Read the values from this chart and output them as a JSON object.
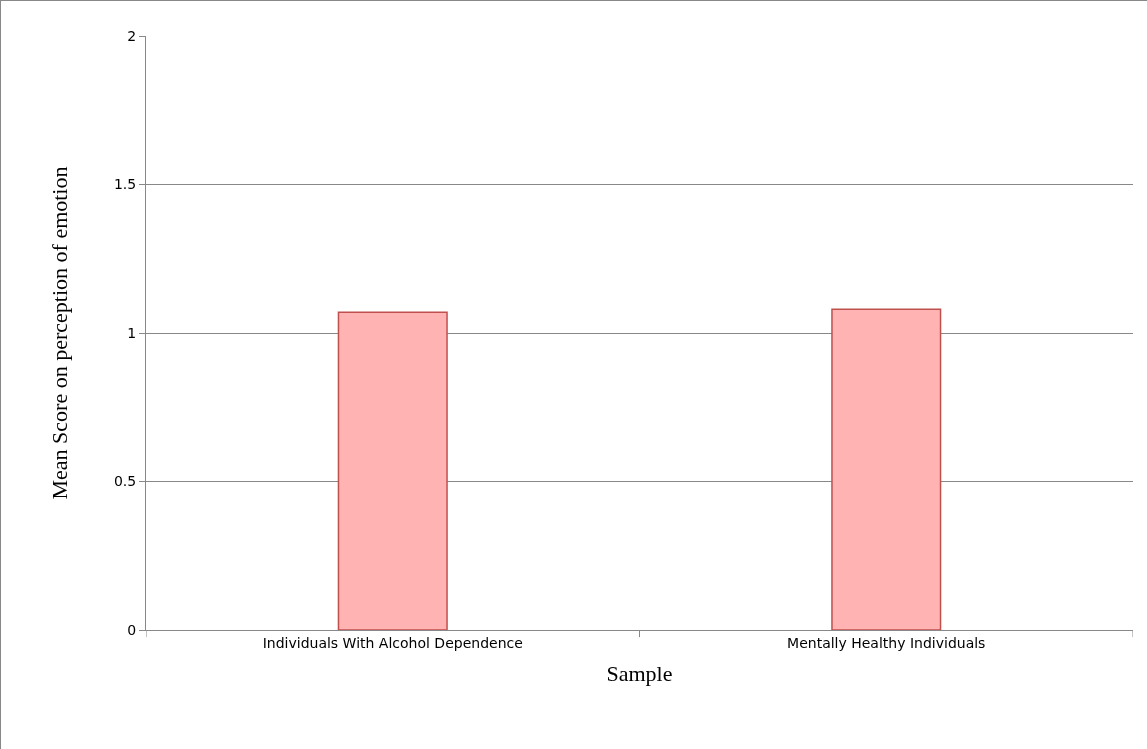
{
  "chart_data": {
    "type": "bar",
    "xlabel": "Sample",
    "ylabel": "Mean Score on perception of emotion",
    "categories": [
      "Individuals With Alcohol Dependence",
      "Mentally Healthy Individuals"
    ],
    "values": [
      1.07,
      1.08
    ],
    "color": "#ffb3b3",
    "ylim": [
      0,
      2
    ],
    "yticks": [
      0,
      0.5,
      1,
      1.5,
      2
    ],
    "grid": "y",
    "legend": false
  }
}
